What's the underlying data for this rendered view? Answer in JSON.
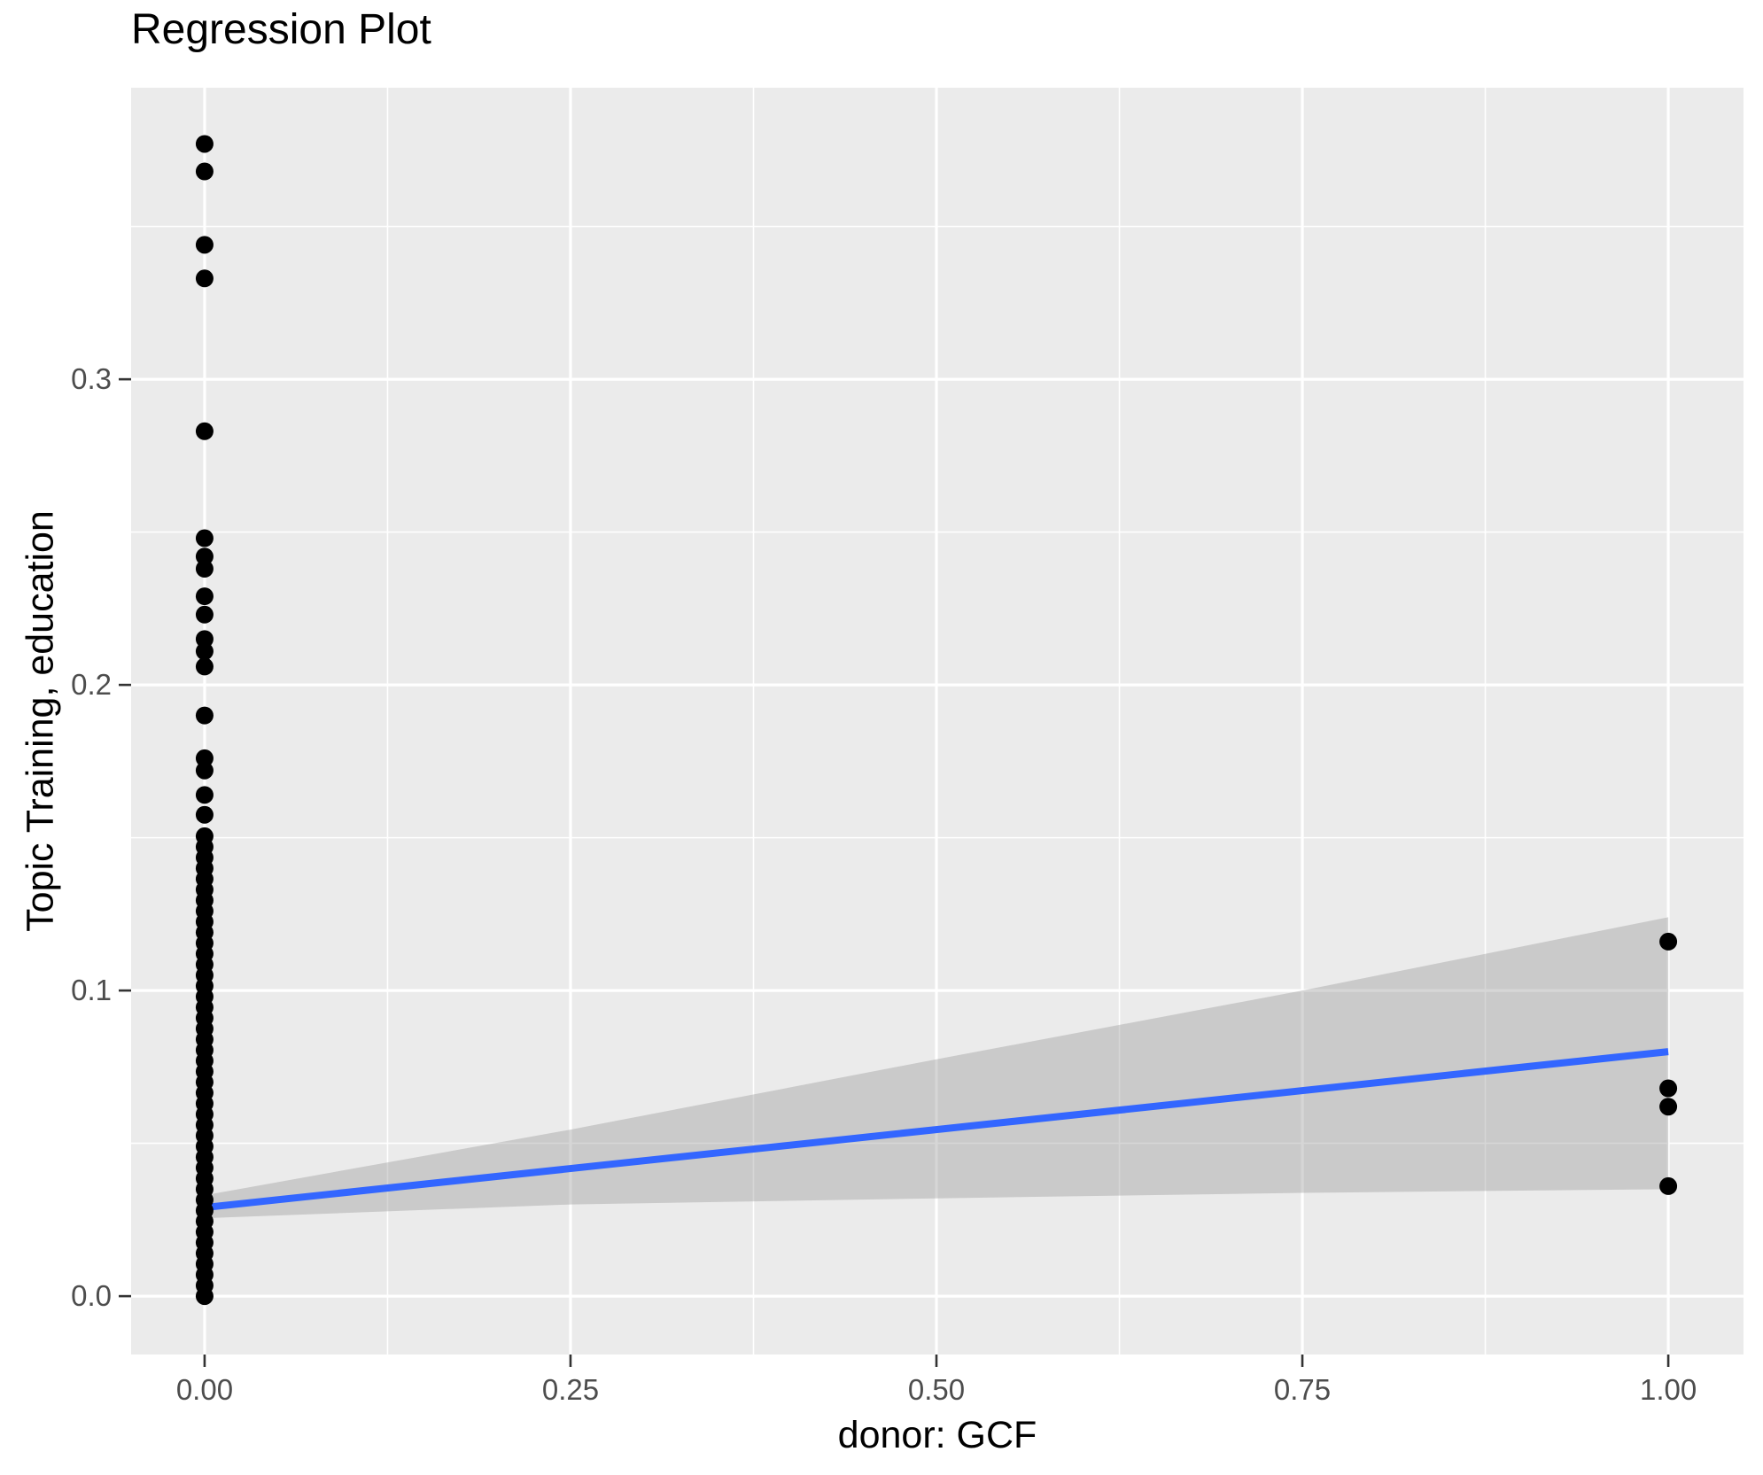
{
  "chart": {
    "title": "Regression Plot",
    "xlabel": "donor: GCF",
    "ylabel": "Topic Training, education"
  },
  "chart_data": {
    "type": "scatter",
    "title": "Regression Plot",
    "xlabel": "donor: GCF",
    "ylabel": "Topic Training, education",
    "grid": "on",
    "legend": "none",
    "xlim": [
      -0.0502,
      1.0514
    ],
    "ylim": [
      -0.0191,
      0.3954
    ],
    "x_ticks": [
      {
        "value": 0.0,
        "label": "0.00"
      },
      {
        "value": 0.25,
        "label": "0.25"
      },
      {
        "value": 0.5,
        "label": "0.50"
      },
      {
        "value": 0.75,
        "label": "0.75"
      },
      {
        "value": 1.0,
        "label": "1.00"
      }
    ],
    "y_ticks": [
      {
        "value": 0.0,
        "label": "0.0"
      },
      {
        "value": 0.1,
        "label": "0.1"
      },
      {
        "value": 0.2,
        "label": "0.2"
      },
      {
        "value": 0.3,
        "label": "0.3"
      }
    ],
    "x_minor_gridlines": [
      0.125,
      0.375,
      0.625,
      0.875
    ],
    "y_minor_gridlines": [
      0.05,
      0.15,
      0.25,
      0.35
    ],
    "series": [
      {
        "name": "observations at donor=0",
        "x": 0,
        "y_values": [
          0.377,
          0.368,
          0.344,
          0.333,
          0.283,
          0.248,
          0.242,
          0.238,
          0.229,
          0.223,
          0.215,
          0.211,
          0.206,
          0.19,
          0.176,
          0.172,
          0.164,
          0.1575,
          0.1505,
          0.147,
          0.1435,
          0.14,
          0.1365,
          0.133,
          0.1295,
          0.126,
          0.1225,
          0.119,
          0.1155,
          0.112,
          0.1085,
          0.105,
          0.1015,
          0.098,
          0.0945,
          0.091,
          0.0875,
          0.084,
          0.0805,
          0.077,
          0.0735,
          0.07,
          0.0665,
          0.063,
          0.0595,
          0.056,
          0.0525,
          0.049,
          0.0455,
          0.042,
          0.0385,
          0.035,
          0.0315,
          0.028,
          0.0245,
          0.021,
          0.0175,
          0.014,
          0.0105,
          0.007,
          0.0035,
          0.0
        ]
      },
      {
        "name": "observations at donor=1",
        "x": 1,
        "y_values": [
          0.116,
          0.068,
          0.062,
          0.036
        ]
      }
    ],
    "regression_line": {
      "x": [
        0,
        1
      ],
      "y": [
        0.029,
        0.08
      ],
      "color": "#3366FF"
    },
    "confidence_band": {
      "x": [
        0,
        0.25,
        0.5,
        0.75,
        1
      ],
      "upper": [
        0.033,
        0.0545,
        0.0775,
        0.1,
        0.124
      ],
      "lower": [
        0.0255,
        0.03,
        0.032,
        0.0338,
        0.035
      ],
      "fill": "#999999",
      "opacity": 0.4
    },
    "colors": {
      "panel_background": "#EBEBEB",
      "gridline": "#FFFFFF",
      "point": "#000000",
      "line": "#3366FF",
      "tick_text": "#4d4d4d",
      "tick_mark": "#333333",
      "title_text": "#000000"
    }
  }
}
